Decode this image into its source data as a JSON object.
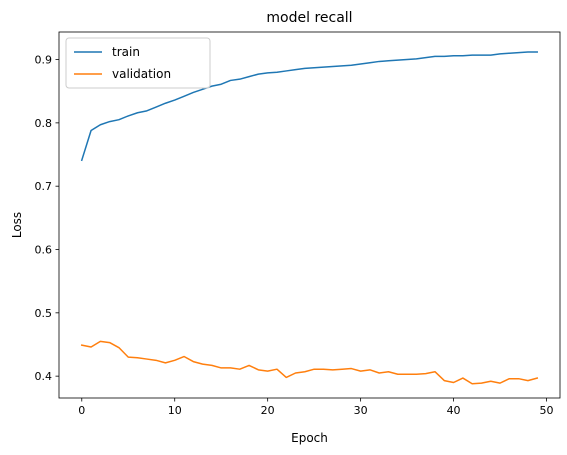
{
  "chart_data": {
    "type": "line",
    "title": "model recall",
    "xlabel": "Epoch",
    "ylabel": "Loss",
    "xlim": [
      -2.45,
      51.45
    ],
    "ylim": [
      0.3655,
      0.9435
    ],
    "xticks": [
      0,
      10,
      20,
      30,
      40,
      50
    ],
    "yticks": [
      0.4,
      0.5,
      0.6,
      0.7,
      0.8,
      0.9
    ],
    "xtick_labels": [
      "0",
      "10",
      "20",
      "30",
      "40",
      "50"
    ],
    "ytick_labels": [
      "0.4",
      "0.5",
      "0.6",
      "0.7",
      "0.8",
      "0.9"
    ],
    "grid": false,
    "legend_position": "upper-left",
    "x": [
      0,
      1,
      2,
      3,
      4,
      5,
      6,
      7,
      8,
      9,
      10,
      11,
      12,
      13,
      14,
      15,
      16,
      17,
      18,
      19,
      20,
      21,
      22,
      23,
      24,
      25,
      26,
      27,
      28,
      29,
      30,
      31,
      32,
      33,
      34,
      35,
      36,
      37,
      38,
      39,
      40,
      41,
      42,
      43,
      44,
      45,
      46,
      47,
      48,
      49
    ],
    "series": [
      {
        "name": "train",
        "color": "#1f77b4",
        "values": [
          0.741,
          0.788,
          0.797,
          0.802,
          0.805,
          0.811,
          0.816,
          0.819,
          0.825,
          0.831,
          0.836,
          0.842,
          0.848,
          0.853,
          0.858,
          0.861,
          0.867,
          0.869,
          0.873,
          0.877,
          0.879,
          0.88,
          0.882,
          0.884,
          0.886,
          0.887,
          0.888,
          0.889,
          0.89,
          0.891,
          0.893,
          0.895,
          0.897,
          0.898,
          0.899,
          0.9,
          0.901,
          0.903,
          0.905,
          0.905,
          0.906,
          0.906,
          0.907,
          0.907,
          0.907,
          0.909,
          0.91,
          0.911,
          0.912,
          0.912
        ]
      },
      {
        "name": "validation",
        "color": "#ff7f0e",
        "values": [
          0.449,
          0.446,
          0.455,
          0.453,
          0.445,
          0.43,
          0.429,
          0.427,
          0.425,
          0.421,
          0.425,
          0.431,
          0.423,
          0.419,
          0.417,
          0.413,
          0.413,
          0.411,
          0.417,
          0.41,
          0.408,
          0.411,
          0.398,
          0.405,
          0.407,
          0.411,
          0.411,
          0.41,
          0.411,
          0.412,
          0.408,
          0.41,
          0.405,
          0.407,
          0.403,
          0.403,
          0.403,
          0.404,
          0.407,
          0.393,
          0.39,
          0.397,
          0.388,
          0.389,
          0.392,
          0.389,
          0.396,
          0.396,
          0.393,
          0.397
        ]
      }
    ]
  }
}
